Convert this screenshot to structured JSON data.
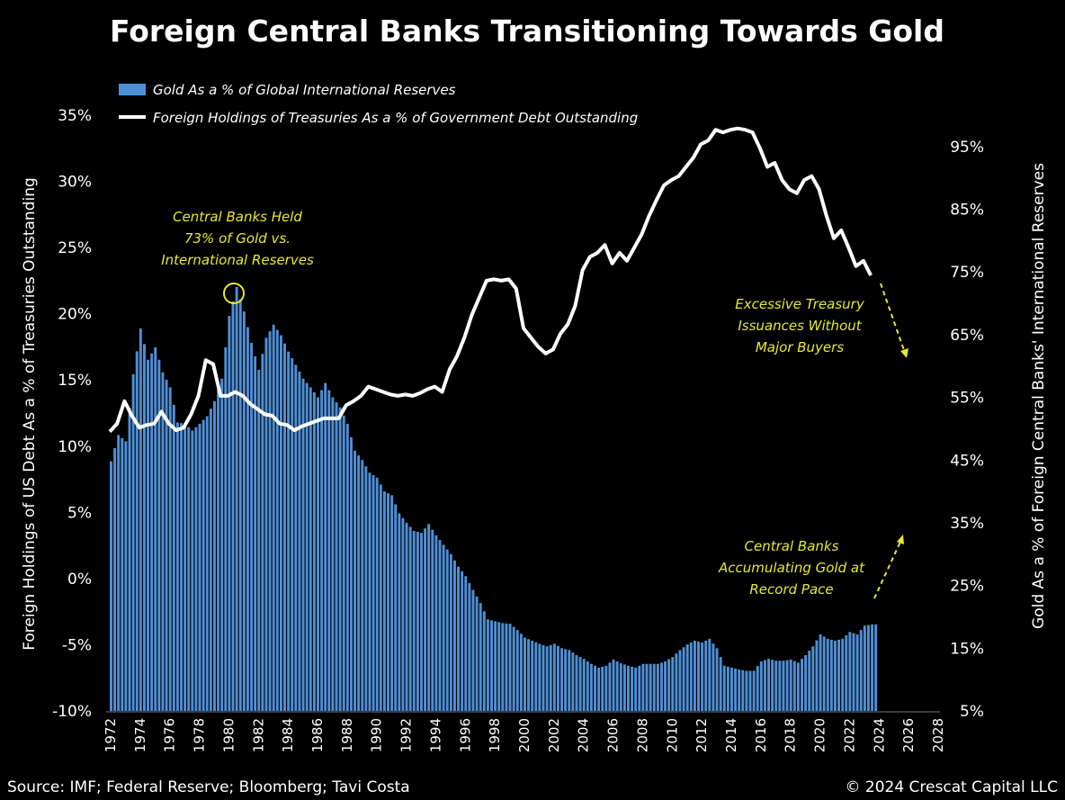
{
  "chart_data": {
    "type": "bar+line",
    "title": "Foreign Central Banks Transitioning Towards Gold",
    "ylabel_left": "Foreign Holdings of US Debt As a % of  Treasuries Outstanding",
    "ylabel_right": "Gold As a % of Foreign Central Banks' International Reserves",
    "ylim_left": [
      -10,
      35
    ],
    "ylim_right": [
      5,
      100
    ],
    "yticks_left": [
      "-10%",
      "-5%",
      "0%",
      "5%",
      "10%",
      "15%",
      "20%",
      "25%",
      "30%",
      "35%"
    ],
    "yticks_right": [
      "5%",
      "15%",
      "25%",
      "35%",
      "45%",
      "55%",
      "65%",
      "75%",
      "85%",
      "95%"
    ],
    "xticks": [
      "1972",
      "1974",
      "1976",
      "1978",
      "1980",
      "1982",
      "1984",
      "1986",
      "1988",
      "1990",
      "1992",
      "1994",
      "1996",
      "1998",
      "2000",
      "2002",
      "2004",
      "2006",
      "2008",
      "2010",
      "2012",
      "2014",
      "2016",
      "2018",
      "2020",
      "2022",
      "2024",
      "2026",
      "2028"
    ],
    "xlim": [
      1972,
      2028
    ],
    "grid": false,
    "legend_placement": "top-left",
    "colors": {
      "bars": "#4f8fd6",
      "line": "#ffffff",
      "annotation": "#e8e82a",
      "background": "#000000"
    },
    "x": [
      1972,
      1972.5,
      1973,
      1973.5,
      1974,
      1974.5,
      1975,
      1975.5,
      1976,
      1976.5,
      1977,
      1977.5,
      1978,
      1978.5,
      1979,
      1979.5,
      1980,
      1980.5,
      1981,
      1981.5,
      1982,
      1982.5,
      1983,
      1983.5,
      1984,
      1984.5,
      1985,
      1985.5,
      1986,
      1986.5,
      1987,
      1987.5,
      1988,
      1988.5,
      1989,
      1989.5,
      1990,
      1990.5,
      1991,
      1991.5,
      1992,
      1992.5,
      1993,
      1993.5,
      1994,
      1994.5,
      1995,
      1995.5,
      1996,
      1996.5,
      1997,
      1997.5,
      1998,
      1998.5,
      1999,
      1999.5,
      2000,
      2000.5,
      2001,
      2001.5,
      2002,
      2002.5,
      2003,
      2003.5,
      2004,
      2004.5,
      2005,
      2005.5,
      2006,
      2006.5,
      2007,
      2007.5,
      2008,
      2008.5,
      2009,
      2009.5,
      2010,
      2010.5,
      2011,
      2011.5,
      2012,
      2012.5,
      2013,
      2013.5,
      2014,
      2014.5,
      2015,
      2015.5,
      2016,
      2016.5,
      2017,
      2017.5,
      2018,
      2018.5,
      2019,
      2019.5,
      2020,
      2020.5,
      2021,
      2021.5,
      2022,
      2022.5,
      2023,
      2023.5
    ],
    "series": [
      {
        "name": "Gold As a % of Global International Reserves",
        "type": "bar",
        "axis": "right",
        "values": [
          44.8,
          49,
          48,
          58.7,
          66,
          61,
          63,
          59,
          56.6,
          51,
          50.8,
          49.7,
          50.8,
          52,
          54.4,
          58,
          68,
          72.6,
          68.7,
          63.7,
          59.4,
          64.5,
          66.6,
          64.9,
          62.3,
          60.2,
          58,
          56.6,
          55,
          57.3,
          55,
          53.4,
          50.8,
          46.5,
          45,
          43,
          42.2,
          40,
          39.4,
          36.5,
          35,
          33.7,
          33.4,
          34.8,
          33,
          31.5,
          30,
          28,
          26.5,
          24.3,
          22.2,
          19.6,
          19.3,
          19,
          18.9,
          17.9,
          16.7,
          16.2,
          15.7,
          15.3,
          15.7,
          15,
          14.7,
          13.9,
          13.3,
          12.5,
          11.9,
          12.2,
          13.2,
          12.6,
          12.2,
          11.9,
          12.5,
          12.5,
          12.5,
          12.9,
          13.6,
          14.7,
          15.6,
          16.2,
          15.9,
          16.5,
          15,
          12.2,
          11.9,
          11.6,
          11.4,
          11.4,
          12.9,
          13.3,
          13,
          13,
          13.2,
          12.7,
          13.9,
          15.3,
          17.2,
          16.5,
          16.2,
          16.5,
          17.6,
          17.2,
          18.6,
          18.8
        ]
      },
      {
        "name": "Foreign Holdings of Treasuries As a % of Government Debt Outstanding",
        "type": "line",
        "axis": "left",
        "values": [
          11.1,
          11.7,
          13.4,
          12.3,
          11.4,
          11.6,
          11.7,
          12.6,
          11.7,
          11.2,
          11.4,
          12.4,
          13.8,
          16.5,
          16.2,
          13.8,
          13.8,
          14.1,
          13.8,
          13.2,
          12.8,
          12.4,
          12.3,
          11.7,
          11.6,
          11.2,
          11.5,
          11.7,
          11.9,
          12.1,
          12.1,
          12.1,
          13.1,
          13.4,
          13.8,
          14.5,
          14.3,
          14.1,
          13.9,
          13.8,
          13.9,
          13.8,
          14.0,
          14.3,
          14.5,
          14.1,
          15.8,
          16.8,
          18.2,
          19.9,
          21.2,
          22.5,
          22.6,
          22.5,
          22.6,
          21.9,
          18.9,
          18.2,
          17.5,
          17.0,
          17.3,
          18.5,
          19.2,
          20.6,
          23.3,
          24.3,
          24.6,
          25.2,
          23.8,
          24.6,
          24.0,
          25.0,
          26.0,
          27.4,
          28.6,
          29.7,
          30.1,
          30.4,
          31.1,
          31.8,
          32.8,
          33.1,
          33.9,
          33.7,
          33.9,
          34.0,
          33.9,
          33.7,
          32.5,
          31.1,
          31.4,
          30.1,
          29.4,
          29.1,
          30.1,
          30.4,
          29.4,
          27.4,
          25.7,
          26.3,
          25.0,
          23.6,
          24.0,
          22.9
        ]
      }
    ],
    "annotations": {
      "peak": [
        "Central Banks Held",
        "73% of Gold vs.",
        "International Reserves"
      ],
      "treasury": [
        "Excessive Treasury",
        "Issuances Without",
        "Major Buyers"
      ],
      "gold": [
        "Central Banks",
        "Accumulating Gold at",
        "Record Pace"
      ]
    }
  },
  "footer": {
    "source": "Source: IMF; Federal Reserve; Bloomberg; Tavi Costa",
    "copyright": "© 2024 Crescat Capital LLC"
  }
}
